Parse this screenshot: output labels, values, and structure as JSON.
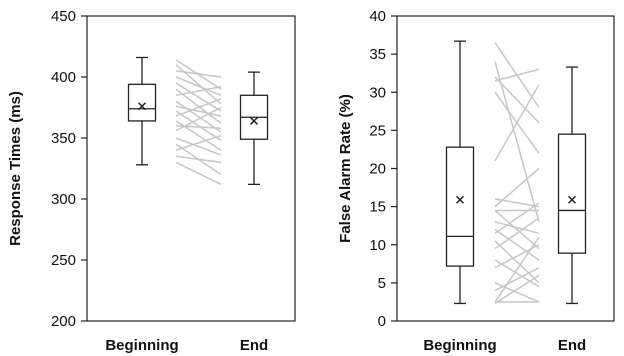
{
  "chart_data": [
    {
      "type": "box",
      "title": "",
      "xlabel": "",
      "ylabel": "Response Times (ms)",
      "ylim": [
        200,
        450
      ],
      "yticks": [
        200,
        250,
        300,
        350,
        400,
        450
      ],
      "grid": false,
      "categories": [
        "Beginning",
        "End"
      ],
      "boxes": [
        {
          "category": "Beginning",
          "min": 328,
          "q1": 364,
          "median": 374,
          "q3": 394,
          "max": 416,
          "mean": 376
        },
        {
          "category": "End",
          "min": 312,
          "q1": 349,
          "median": 367,
          "q3": 385,
          "max": 404,
          "mean": 364
        }
      ],
      "paired_lines": [
        [
          414,
          390
        ],
        [
          410,
          378
        ],
        [
          405,
          400
        ],
        [
          400,
          385
        ],
        [
          395,
          372
        ],
        [
          390,
          362
        ],
        [
          385,
          392
        ],
        [
          380,
          355
        ],
        [
          376,
          368
        ],
        [
          372,
          348
        ],
        [
          368,
          382
        ],
        [
          364,
          340
        ],
        [
          360,
          358
        ],
        [
          356,
          375
        ],
        [
          350,
          336
        ],
        [
          345,
          320
        ],
        [
          340,
          352
        ],
        [
          335,
          330
        ],
        [
          330,
          312
        ]
      ]
    },
    {
      "type": "box",
      "title": "",
      "xlabel": "",
      "ylabel": "False Alarm Rate (%)",
      "ylim": [
        0,
        40
      ],
      "yticks": [
        0,
        5,
        10,
        15,
        20,
        25,
        30,
        35,
        40
      ],
      "grid": false,
      "categories": [
        "Beginning",
        "End"
      ],
      "boxes": [
        {
          "category": "Beginning",
          "min": 2.3,
          "q1": 7.2,
          "median": 11.1,
          "q3": 22.8,
          "max": 36.7,
          "mean": 15.9
        },
        {
          "category": "End",
          "min": 2.3,
          "q1": 8.9,
          "median": 14.5,
          "q3": 24.5,
          "max": 33.3,
          "mean": 15.9
        }
      ],
      "paired_lines": [
        [
          36.5,
          28.0
        ],
        [
          34.0,
          13.0
        ],
        [
          32.0,
          26.0
        ],
        [
          31.5,
          33.0
        ],
        [
          30.0,
          22.0
        ],
        [
          21.0,
          31.0
        ],
        [
          16.0,
          15.0
        ],
        [
          15.0,
          20.0
        ],
        [
          14.5,
          9.5
        ],
        [
          14.5,
          14.5
        ],
        [
          13.0,
          11.5
        ],
        [
          12.0,
          8.0
        ],
        [
          11.5,
          15.5
        ],
        [
          10.5,
          5.0
        ],
        [
          9.5,
          13.5
        ],
        [
          8.0,
          4.5
        ],
        [
          7.0,
          10.0
        ],
        [
          5.0,
          2.5
        ],
        [
          4.0,
          7.0
        ],
        [
          2.5,
          2.5
        ],
        [
          2.5,
          11.0
        ],
        [
          2.3,
          6.0
        ]
      ]
    }
  ]
}
